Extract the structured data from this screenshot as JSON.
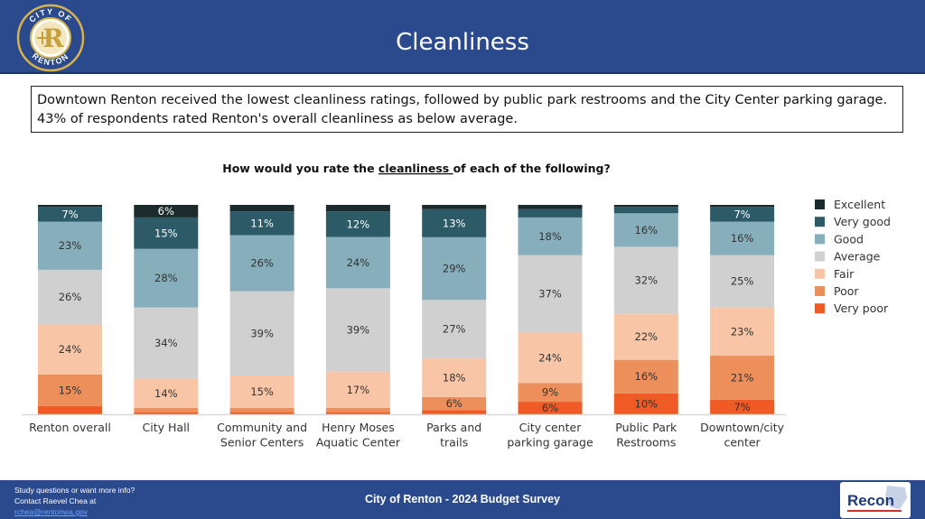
{
  "header": {
    "title": "Cleanliness"
  },
  "logo": {
    "name": "city-of-renton-seal",
    "text_top": "CITY OF",
    "text_bottom": "RENTON",
    "letter": "R"
  },
  "summary": {
    "line1": "Downtown Renton received the lowest cleanliness ratings, followed by public park restrooms and the City Center parking garage.",
    "line2": "43% of respondents rated Renton's overall cleanliness as below average."
  },
  "chart_data": {
    "type": "bar",
    "stacked": true,
    "title_prefix": "How would you rate the ",
    "title_emphasis": "cleanliness ",
    "title_suffix": "of each of the following?",
    "categories": [
      [
        "Renton overall"
      ],
      [
        "City Hall"
      ],
      [
        "Community and",
        "Senior Centers"
      ],
      [
        "Henry Moses",
        "Aquatic Center"
      ],
      [
        "Parks and",
        "trails"
      ],
      [
        "City center",
        "parking garage"
      ],
      [
        "Public Park",
        "Restrooms"
      ],
      [
        "Downtown/city",
        "center"
      ]
    ],
    "series": [
      {
        "name": "Very poor",
        "color": "#f05a24",
        "values": [
          4,
          1,
          1,
          1,
          2,
          6,
          10,
          7
        ],
        "labels": [
          "",
          "",
          "",
          "",
          "",
          "6%",
          "10%",
          "7%"
        ]
      },
      {
        "name": "Poor",
        "color": "#ec8f5a",
        "values": [
          15,
          2,
          2,
          2,
          6,
          9,
          16,
          21
        ],
        "labels": [
          "15%",
          "",
          "",
          "",
          "6%",
          "9%",
          "16%",
          "21%"
        ]
      },
      {
        "name": "Fair",
        "color": "#f8c6a7",
        "values": [
          24,
          14,
          15,
          17,
          18,
          24,
          22,
          23
        ],
        "labels": [
          "24%",
          "14%",
          "15%",
          "17%",
          "18%",
          "24%",
          "22%",
          "23%"
        ]
      },
      {
        "name": "Average",
        "color": "#d0d0d0",
        "values": [
          26,
          34,
          39,
          39,
          27,
          37,
          32,
          25
        ],
        "labels": [
          "26%",
          "34%",
          "39%",
          "39%",
          "27%",
          "37%",
          "32%",
          "25%"
        ]
      },
      {
        "name": "Good",
        "color": "#86aebb",
        "values": [
          23,
          28,
          26,
          24,
          29,
          18,
          16,
          16
        ],
        "labels": [
          "23%",
          "28%",
          "26%",
          "24%",
          "29%",
          "18%",
          "16%",
          "16%"
        ]
      },
      {
        "name": "Very good",
        "color": "#2c5a66",
        "values": [
          7,
          15,
          11,
          12,
          13,
          4,
          3,
          7
        ],
        "labels": [
          "7%",
          "15%",
          "11%",
          "12%",
          "13%",
          "",
          "",
          "7%"
        ]
      },
      {
        "name": "Excellent",
        "color": "#1b2b2c",
        "values": [
          1,
          6,
          3,
          3,
          2,
          2,
          1,
          1
        ],
        "labels": [
          "",
          "6%",
          "",
          "",
          "",
          "",
          "",
          ""
        ]
      }
    ],
    "legend": [
      "Excellent",
      "Very good",
      "Good",
      "Average",
      "Fair",
      "Poor",
      "Very poor"
    ],
    "legend_position": "right",
    "ylim": [
      0,
      100
    ],
    "grid": false
  },
  "footer": {
    "note_line1": "Study questions or want more info?",
    "note_line2": "Contact Raevel Chea at",
    "note_email": "rchea@rentonwa.gov",
    "center": "City of Renton - 2024 Budget Survey",
    "logo_text": "Recon"
  }
}
